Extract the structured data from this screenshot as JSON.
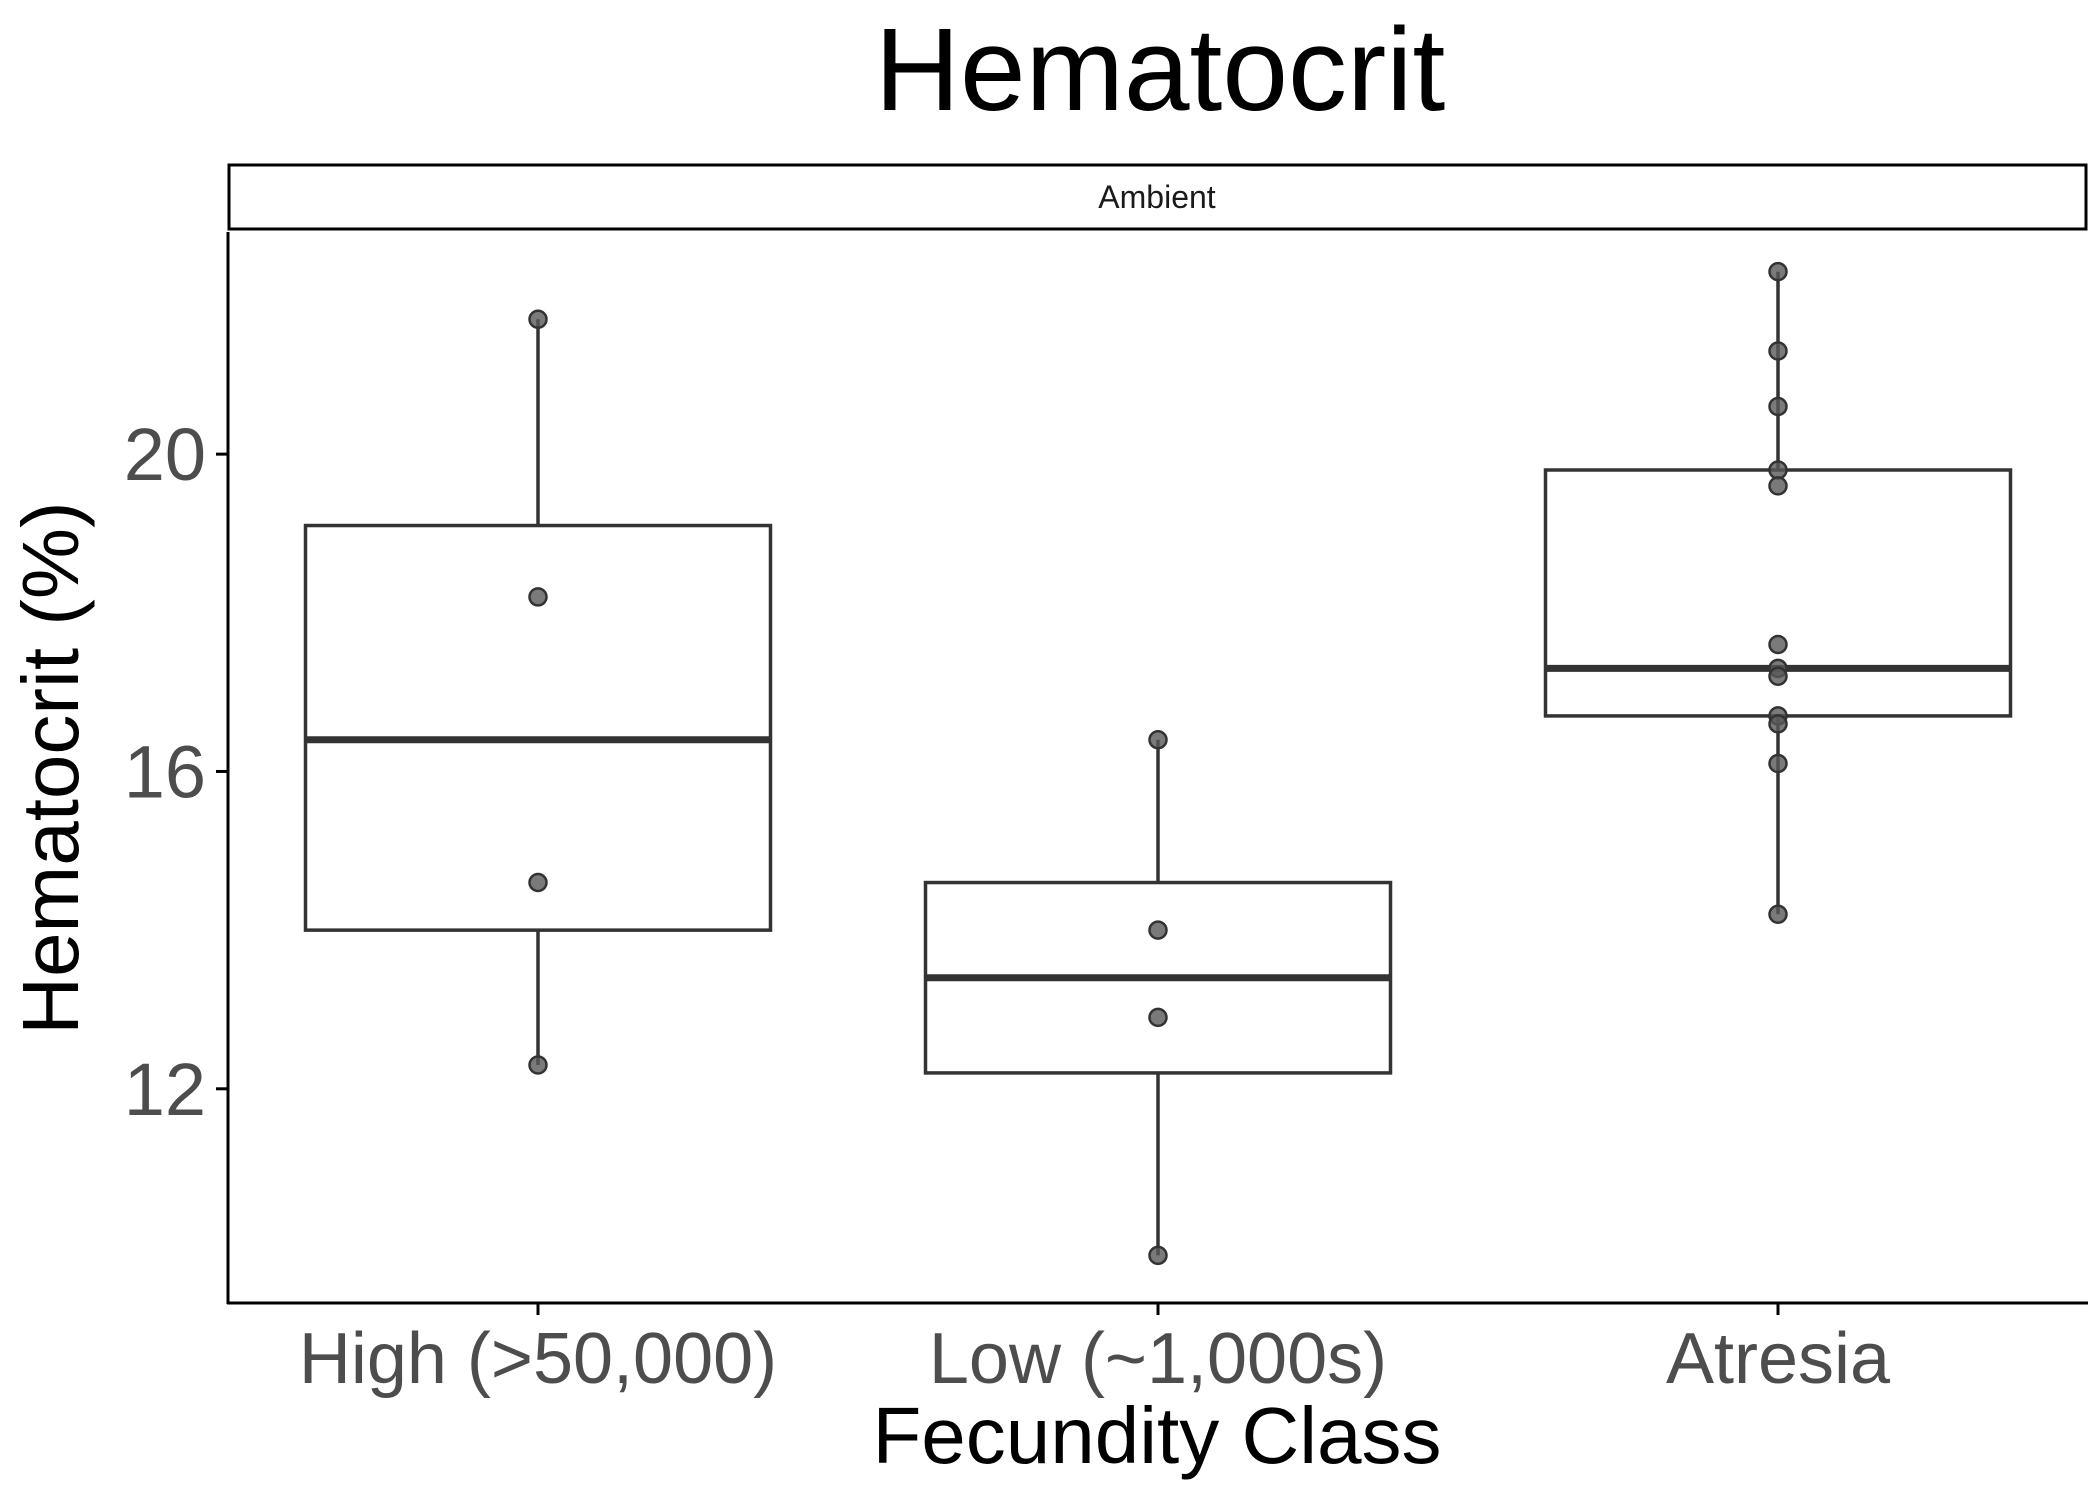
{
  "chart_data": {
    "type": "box",
    "title": "Hematocrit",
    "facet_label": "Ambient",
    "xlabel": "Fecundity Class",
    "ylabel": "Hematocrit (%)",
    "categories": [
      "High (>50,000)",
      "Low (~1,000s)",
      "Atresia"
    ],
    "ylim": [
      9.3,
      22.8
    ],
    "yticks": [
      12,
      16,
      20
    ],
    "ytick_labels": [
      "12",
      "16",
      "20"
    ],
    "grid": false,
    "legend": "none",
    "colors": {
      "box_stroke": "#333333",
      "point_fill": "#595959",
      "axis": "#000000"
    },
    "boxes": [
      {
        "category": "High (>50,000)",
        "whisker_low": 12.3,
        "q1": 14.0,
        "median": 16.4,
        "q3": 19.1,
        "whisker_high": 21.7
      },
      {
        "category": "Low (~1,000s)",
        "whisker_low": 9.9,
        "q1": 12.2,
        "median": 13.4,
        "q3": 14.6,
        "whisker_high": 16.4
      },
      {
        "category": "Atresia",
        "whisker_low": 14.2,
        "q1": 16.7,
        "median": 17.3,
        "q3": 19.8,
        "whisker_high": 22.3
      }
    ],
    "points": [
      {
        "category": "High (>50,000)",
        "values": [
          21.7,
          18.2,
          14.6,
          12.3
        ]
      },
      {
        "category": "Low (~1,000s)",
        "values": [
          16.4,
          14.0,
          12.9,
          9.9
        ]
      },
      {
        "category": "Atresia",
        "values": [
          22.3,
          21.3,
          20.6,
          19.8,
          19.6,
          17.6,
          17.3,
          17.2,
          16.7,
          16.6,
          16.1,
          14.2
        ]
      }
    ]
  }
}
